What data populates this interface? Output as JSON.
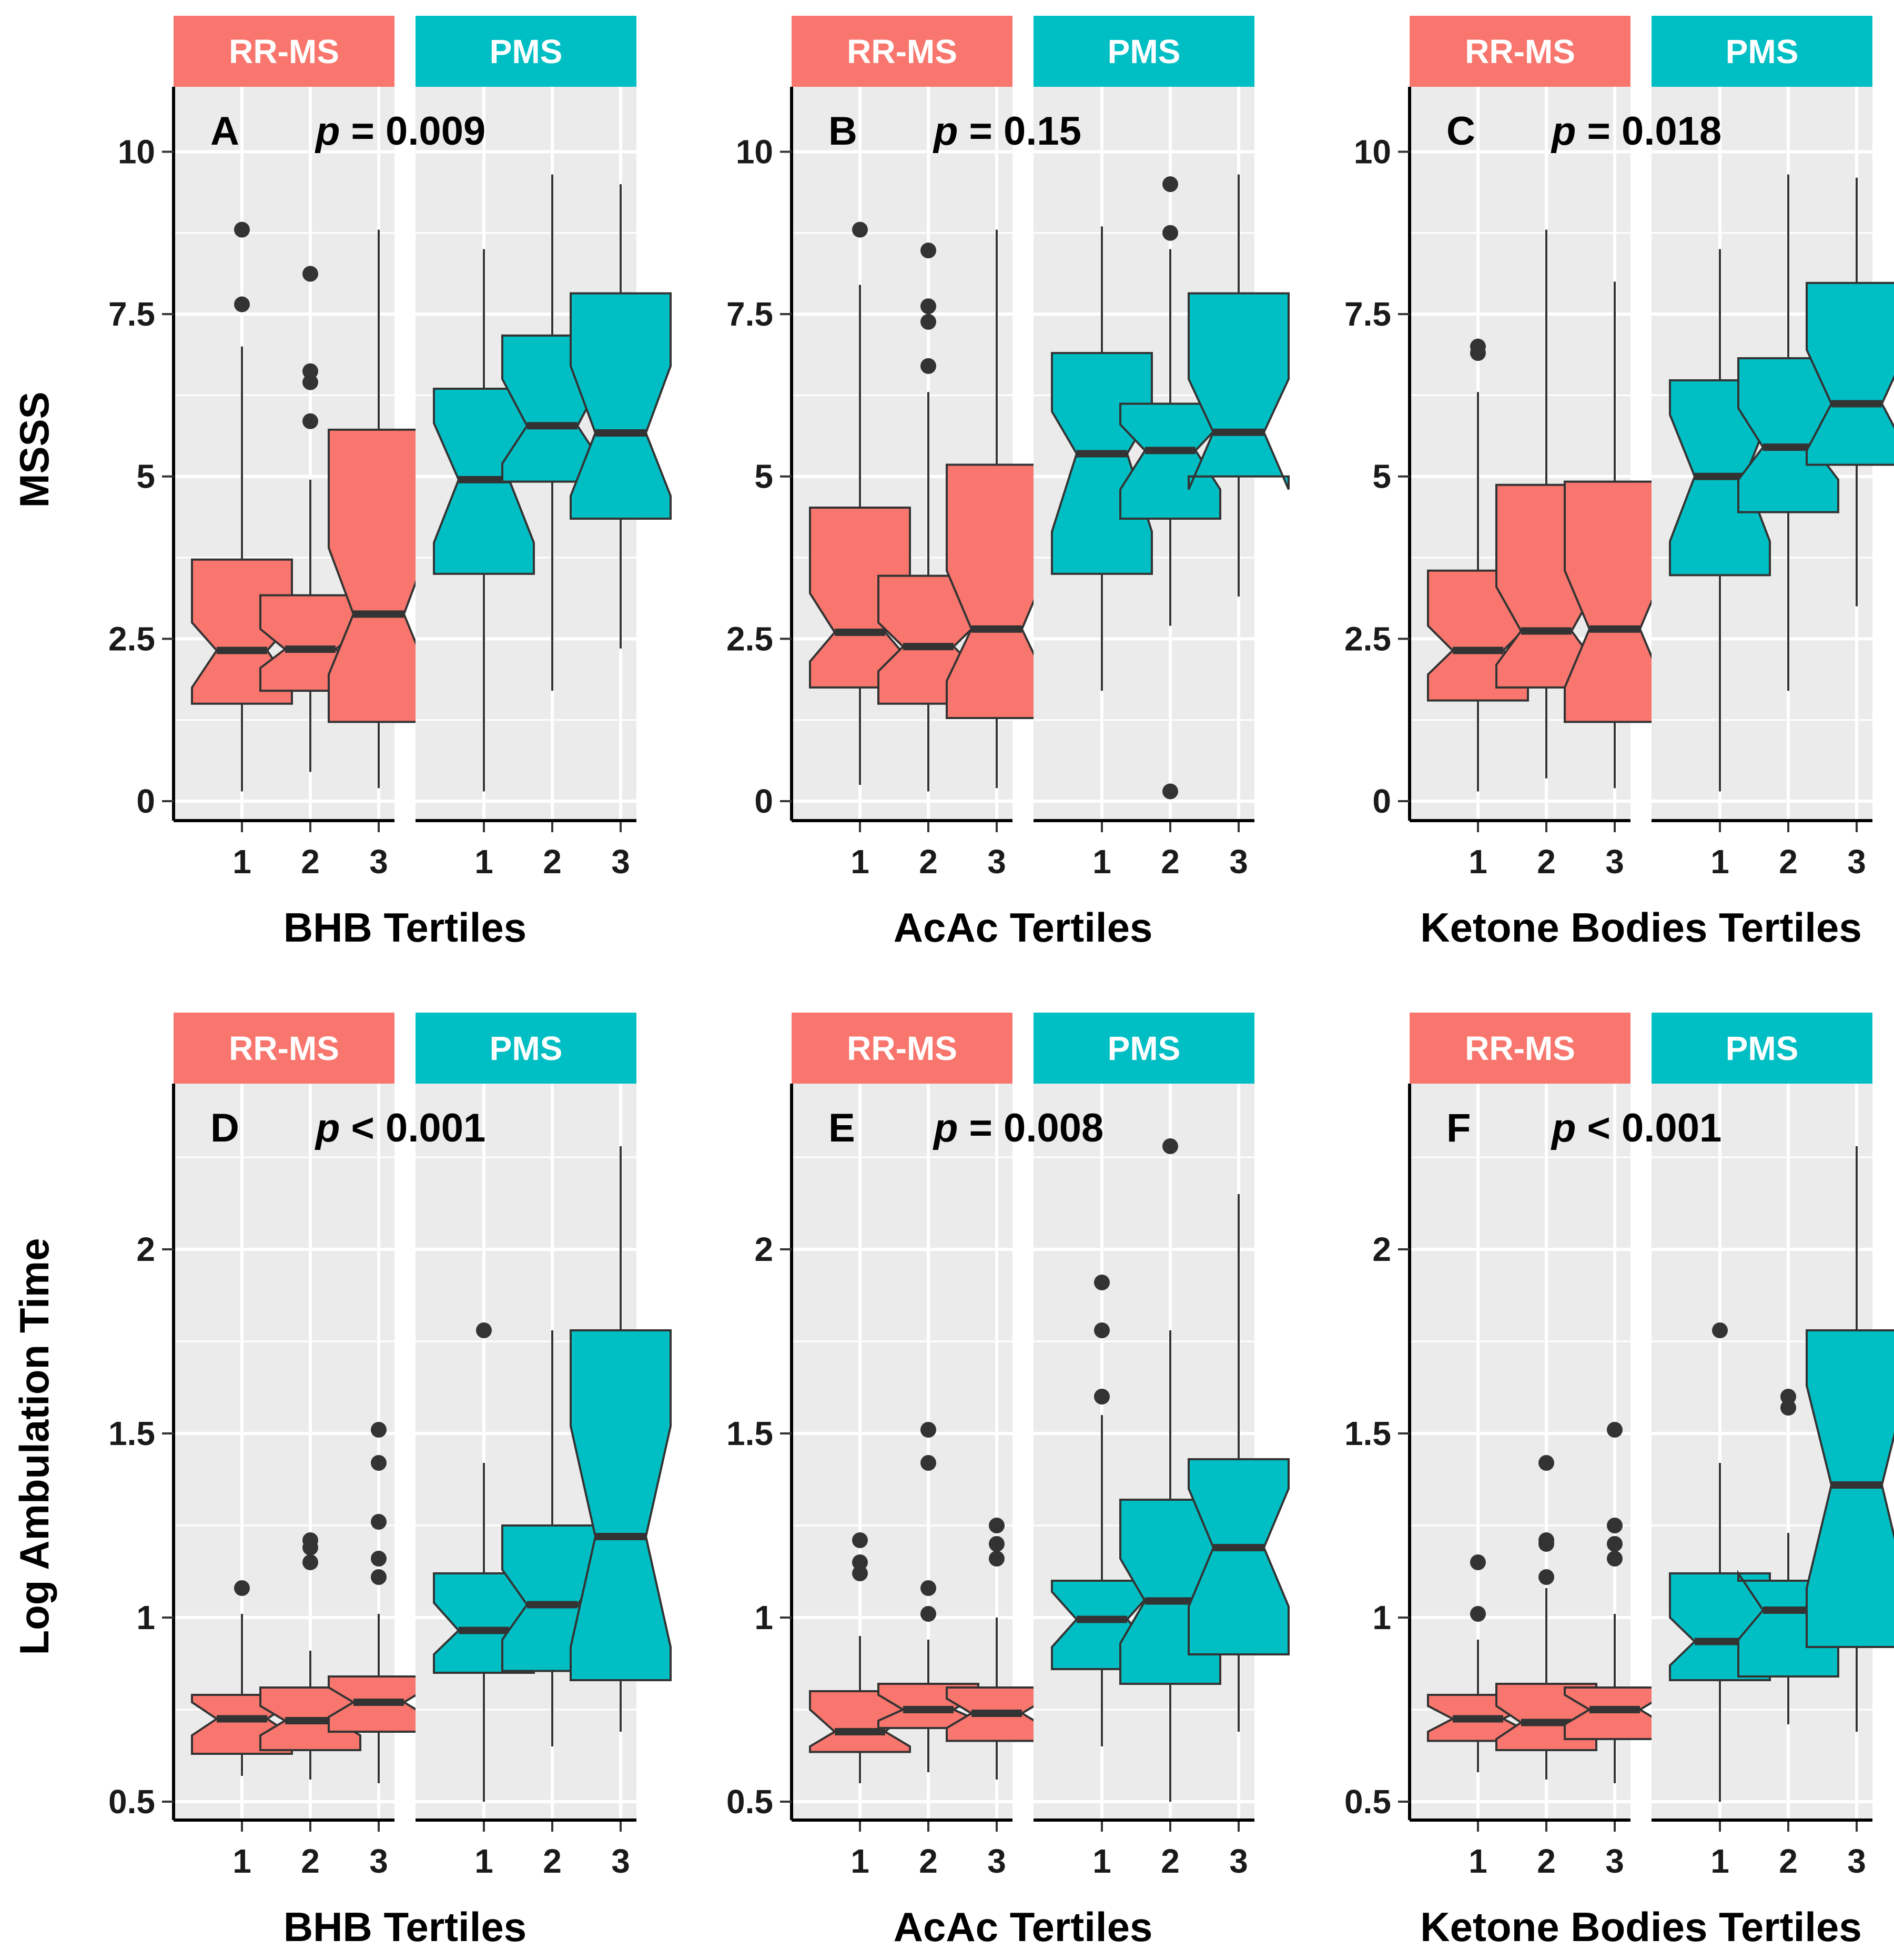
{
  "chart_data": {
    "type": "boxplot",
    "notched": true,
    "colors": {
      "RR-MS": "#F8766D",
      "PMS": "#00BFC4",
      "panel_bg": "#EBEBEB",
      "outline": "#333333"
    },
    "groups": [
      "RR-MS",
      "PMS"
    ],
    "categories": [
      "1",
      "2",
      "3"
    ],
    "rows": [
      {
        "ylabel": "MSSS",
        "ylim": [
          -0.3,
          11.0
        ],
        "yticks": [
          0,
          2.5,
          5,
          7.5,
          10
        ],
        "ytick_labels": [
          "0",
          "2.5",
          "5",
          "7.5",
          "10"
        ]
      },
      {
        "ylabel": "Log Ambulation Time",
        "ylim": [
          0.45,
          2.45
        ],
        "yticks": [
          0.5,
          1,
          1.5,
          2
        ],
        "ytick_labels": [
          "0.5",
          "1",
          "1.5",
          "2"
        ]
      }
    ],
    "panels": [
      {
        "letter": "A",
        "p_prefix": "p",
        "p_text": " = 0.009",
        "xlabel": "BHB Tertiles",
        "row": 0,
        "col": 0,
        "boxes": {
          "RR-MS": [
            {
              "q1": 1.5,
              "median": 2.32,
              "q3": 3.72,
              "notch_low": 1.75,
              "notch_high": 2.75,
              "whisker_low": 0.15,
              "whisker_high": 7.0,
              "outliers": [
                7.65,
                8.8
              ]
            },
            {
              "q1": 1.7,
              "median": 2.34,
              "q3": 3.17,
              "notch_low": 2.05,
              "notch_high": 2.65,
              "whisker_low": 0.45,
              "whisker_high": 4.95,
              "outliers": [
                5.85,
                6.45,
                6.62,
                8.12
              ]
            },
            {
              "q1": 1.22,
              "median": 2.88,
              "q3": 5.72,
              "notch_low": 1.95,
              "notch_high": 3.9,
              "whisker_low": 0.2,
              "whisker_high": 8.8,
              "outliers": []
            }
          ],
          "PMS": [
            {
              "q1": 3.5,
              "median": 4.95,
              "q3": 6.35,
              "notch_low": 3.98,
              "notch_high": 5.82,
              "whisker_low": 0.15,
              "whisker_high": 8.5,
              "outliers": []
            },
            {
              "q1": 4.92,
              "median": 5.78,
              "q3": 7.17,
              "notch_low": 5.2,
              "notch_high": 6.5,
              "whisker_low": 1.7,
              "whisker_high": 9.65,
              "outliers": []
            },
            {
              "q1": 4.35,
              "median": 5.67,
              "q3": 7.82,
              "notch_low": 4.7,
              "notch_high": 6.7,
              "whisker_low": 2.35,
              "whisker_high": 9.5,
              "outliers": []
            }
          ]
        }
      },
      {
        "letter": "B",
        "p_prefix": "p",
        "p_text": " = 0.15",
        "xlabel": "AcAc Tertiles",
        "row": 0,
        "col": 1,
        "boxes": {
          "RR-MS": [
            {
              "q1": 1.75,
              "median": 2.6,
              "q3": 4.52,
              "notch_low": 2.15,
              "notch_high": 3.2,
              "whisker_low": 0.25,
              "whisker_high": 7.95,
              "outliers": [
                8.8
              ]
            },
            {
              "q1": 1.5,
              "median": 2.38,
              "q3": 3.47,
              "notch_low": 2.0,
              "notch_high": 2.75,
              "whisker_low": 0.15,
              "whisker_high": 6.3,
              "outliers": [
                6.7,
                7.38,
                7.62,
                8.48
              ]
            },
            {
              "q1": 1.28,
              "median": 2.65,
              "q3": 5.18,
              "notch_low": 1.85,
              "notch_high": 3.55,
              "whisker_low": 0.2,
              "whisker_high": 8.8,
              "outliers": []
            }
          ],
          "PMS": [
            {
              "q1": 3.5,
              "median": 5.35,
              "q3": 6.9,
              "notch_low": 4.15,
              "notch_high": 6.0,
              "whisker_low": 1.7,
              "whisker_high": 8.85,
              "outliers": []
            },
            {
              "q1": 4.35,
              "median": 5.4,
              "q3": 6.12,
              "notch_low": 4.8,
              "notch_high": 5.8,
              "whisker_low": 2.7,
              "whisker_high": 8.5,
              "outliers": [
                0.15,
                8.75,
                9.5
              ]
            },
            {
              "q1": 5.0,
              "median": 5.68,
              "q3": 7.82,
              "notch_low": 4.8,
              "notch_high": 6.5,
              "whisker_low": 3.15,
              "whisker_high": 9.65,
              "outliers": []
            }
          ]
        }
      },
      {
        "letter": "C",
        "p_prefix": "p",
        "p_text": " = 0.018",
        "xlabel": "Ketone Bodies Tertiles",
        "row": 0,
        "col": 2,
        "boxes": {
          "RR-MS": [
            {
              "q1": 1.55,
              "median": 2.32,
              "q3": 3.55,
              "notch_low": 1.95,
              "notch_high": 2.7,
              "whisker_low": 0.15,
              "whisker_high": 6.3,
              "outliers": [
                6.9,
                7.0
              ]
            },
            {
              "q1": 1.75,
              "median": 2.62,
              "q3": 4.87,
              "notch_low": 2.1,
              "notch_high": 3.3,
              "whisker_low": 0.35,
              "whisker_high": 8.8,
              "outliers": []
            },
            {
              "q1": 1.22,
              "median": 2.65,
              "q3": 4.92,
              "notch_low": 1.75,
              "notch_high": 3.55,
              "whisker_low": 0.2,
              "whisker_high": 8.0,
              "outliers": []
            }
          ],
          "PMS": [
            {
              "q1": 3.48,
              "median": 5.0,
              "q3": 6.48,
              "notch_low": 4.0,
              "notch_high": 5.95,
              "whisker_low": 0.15,
              "whisker_high": 8.5,
              "outliers": []
            },
            {
              "q1": 4.45,
              "median": 5.45,
              "q3": 6.82,
              "notch_low": 4.95,
              "notch_high": 6.05,
              "whisker_low": 1.7,
              "whisker_high": 9.65,
              "outliers": []
            },
            {
              "q1": 5.18,
              "median": 6.12,
              "q3": 7.98,
              "notch_low": 5.4,
              "notch_high": 6.95,
              "whisker_low": 3.0,
              "whisker_high": 9.6,
              "outliers": []
            }
          ]
        }
      },
      {
        "letter": "D",
        "p_prefix": "p",
        "p_text": " < 0.001",
        "xlabel": "BHB Tertiles",
        "row": 1,
        "col": 0,
        "boxes": {
          "RR-MS": [
            {
              "q1": 0.63,
              "median": 0.725,
              "q3": 0.79,
              "notch_low": 0.68,
              "notch_high": 0.77,
              "whisker_low": 0.57,
              "whisker_high": 1.01,
              "outliers": [
                1.08
              ]
            },
            {
              "q1": 0.64,
              "median": 0.72,
              "q3": 0.81,
              "notch_low": 0.68,
              "notch_high": 0.76,
              "whisker_low": 0.56,
              "whisker_high": 0.91,
              "outliers": [
                1.15,
                1.19,
                1.21
              ]
            },
            {
              "q1": 0.69,
              "median": 0.77,
              "q3": 0.84,
              "notch_low": 0.73,
              "notch_high": 0.81,
              "whisker_low": 0.55,
              "whisker_high": 1.01,
              "outliers": [
                1.11,
                1.16,
                1.26,
                1.42,
                1.51
              ]
            }
          ],
          "PMS": [
            {
              "q1": 0.85,
              "median": 0.965,
              "q3": 1.12,
              "notch_low": 0.9,
              "notch_high": 1.04,
              "whisker_low": 0.5,
              "whisker_high": 1.42,
              "outliers": [
                1.78
              ]
            },
            {
              "q1": 0.855,
              "median": 1.035,
              "q3": 1.25,
              "notch_low": 0.94,
              "notch_high": 1.13,
              "whisker_low": 0.65,
              "whisker_high": 1.78,
              "outliers": []
            },
            {
              "q1": 0.83,
              "median": 1.22,
              "q3": 1.78,
              "notch_low": 0.92,
              "notch_high": 1.52,
              "whisker_low": 0.69,
              "whisker_high": 2.28,
              "outliers": []
            }
          ]
        }
      },
      {
        "letter": "E",
        "p_prefix": "p",
        "p_text": " = 0.008",
        "xlabel": "AcAc Tertiles",
        "row": 1,
        "col": 1,
        "boxes": {
          "RR-MS": [
            {
              "q1": 0.635,
              "median": 0.69,
              "q3": 0.8,
              "notch_low": 0.65,
              "notch_high": 0.75,
              "whisker_low": 0.55,
              "whisker_high": 0.95,
              "outliers": [
                1.12,
                1.15,
                1.21
              ]
            },
            {
              "q1": 0.7,
              "median": 0.75,
              "q3": 0.82,
              "notch_low": 0.72,
              "notch_high": 0.79,
              "whisker_low": 0.58,
              "whisker_high": 0.94,
              "outliers": [
                1.01,
                1.08,
                1.42,
                1.51
              ]
            },
            {
              "q1": 0.665,
              "median": 0.74,
              "q3": 0.81,
              "notch_low": 0.7,
              "notch_high": 0.78,
              "whisker_low": 0.56,
              "whisker_high": 1.0,
              "outliers": [
                1.16,
                1.2,
                1.25
              ]
            }
          ],
          "PMS": [
            {
              "q1": 0.86,
              "median": 0.995,
              "q3": 1.1,
              "notch_low": 0.92,
              "notch_high": 1.07,
              "whisker_low": 0.65,
              "whisker_high": 1.55,
              "outliers": [
                1.6,
                1.78,
                1.91
              ]
            },
            {
              "q1": 0.82,
              "median": 1.045,
              "q3": 1.32,
              "notch_low": 0.93,
              "notch_high": 1.16,
              "whisker_low": 0.5,
              "whisker_high": 1.78,
              "outliers": [
                2.28
              ]
            },
            {
              "q1": 0.9,
              "median": 1.19,
              "q3": 1.43,
              "notch_low": 1.03,
              "notch_high": 1.35,
              "whisker_low": 0.69,
              "whisker_high": 2.15,
              "outliers": []
            }
          ]
        }
      },
      {
        "letter": "F",
        "p_prefix": "p",
        "p_text": " < 0.001",
        "xlabel": "Ketone Bodies Tertiles",
        "row": 1,
        "col": 2,
        "boxes": {
          "RR-MS": [
            {
              "q1": 0.665,
              "median": 0.725,
              "q3": 0.79,
              "notch_low": 0.69,
              "notch_high": 0.76,
              "whisker_low": 0.58,
              "whisker_high": 0.94,
              "outliers": [
                1.01,
                1.15
              ]
            },
            {
              "q1": 0.64,
              "median": 0.715,
              "q3": 0.82,
              "notch_low": 0.67,
              "notch_high": 0.76,
              "whisker_low": 0.56,
              "whisker_high": 1.08,
              "outliers": [
                1.11,
                1.2,
                1.21,
                1.42
              ]
            },
            {
              "q1": 0.67,
              "median": 0.75,
              "q3": 0.81,
              "notch_low": 0.71,
              "notch_high": 0.79,
              "whisker_low": 0.55,
              "whisker_high": 1.01,
              "outliers": [
                1.16,
                1.2,
                1.25,
                1.51
              ]
            }
          ],
          "PMS": [
            {
              "q1": 0.83,
              "median": 0.935,
              "q3": 1.12,
              "notch_low": 0.87,
              "notch_high": 1.0,
              "whisker_low": 0.5,
              "whisker_high": 1.42,
              "outliers": [
                1.78
              ]
            },
            {
              "q1": 0.84,
              "median": 1.02,
              "q3": 1.1,
              "notch_low": 0.94,
              "notch_high": 1.12,
              "whisker_low": 0.71,
              "whisker_high": 1.23,
              "outliers": [
                1.57,
                1.6
              ]
            },
            {
              "q1": 0.92,
              "median": 1.36,
              "q3": 1.78,
              "notch_low": 1.08,
              "notch_high": 1.63,
              "whisker_low": 0.69,
              "whisker_high": 2.28,
              "outliers": []
            }
          ]
        }
      }
    ]
  }
}
